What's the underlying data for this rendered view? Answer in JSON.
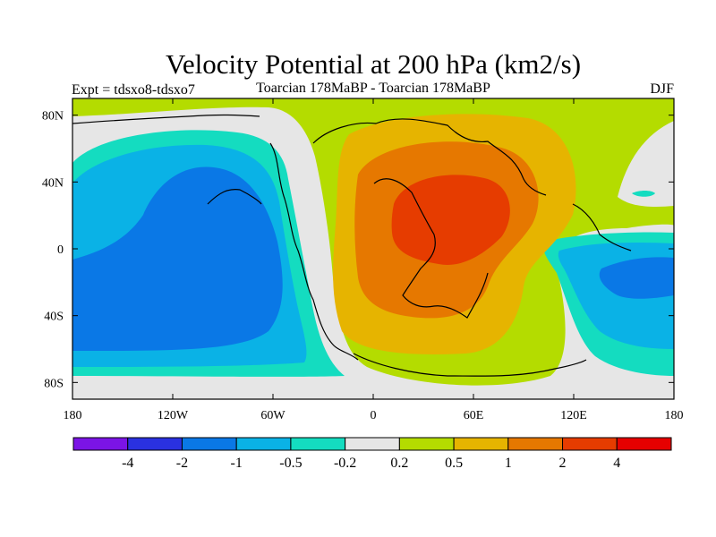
{
  "chart_data": {
    "type": "heatmap",
    "title": "Velocity Potential at 200 hPa (km2/s)",
    "left_subtitle": "Expt = tdsxo8-tdsxo7",
    "center_subtitle": "Toarcian 178MaBP - Toarcian 178MaBP",
    "right_subtitle": "DJF",
    "xlabel": "",
    "ylabel": "",
    "x_range": [
      -180,
      180
    ],
    "y_range": [
      -90,
      90
    ],
    "x_ticks": [
      {
        "value": -180,
        "label": "180"
      },
      {
        "value": -120,
        "label": "120W"
      },
      {
        "value": -60,
        "label": "60W"
      },
      {
        "value": 0,
        "label": "0"
      },
      {
        "value": 60,
        "label": "60E"
      },
      {
        "value": 120,
        "label": "120E"
      },
      {
        "value": 180,
        "label": "180"
      }
    ],
    "y_ticks": [
      {
        "value": 80,
        "label": "80N"
      },
      {
        "value": 40,
        "label": "40N"
      },
      {
        "value": 0,
        "label": "0"
      },
      {
        "value": -40,
        "label": "40S"
      },
      {
        "value": -80,
        "label": "80S"
      }
    ],
    "colorbar": {
      "colors": [
        "#7b14e6",
        "#2a31e0",
        "#0a78e6",
        "#0ab2e6",
        "#14dcc0",
        "#e6e6e6",
        "#b4dc00",
        "#e6b400",
        "#e67800",
        "#e63c00",
        "#e60000"
      ],
      "labels": [
        "-4",
        "-2",
        "-1",
        "-0.5",
        "-0.2",
        "0.2",
        "0.5",
        "1",
        "2",
        "4"
      ]
    },
    "field_regions": [
      {
        "level": "-1",
        "description": "Pacific minimum centered ~100W, 10N"
      },
      {
        "level": "-1",
        "description": "Indian/West Pacific minimum centered ~160E, 15S"
      },
      {
        "level": "2",
        "description": "maximum centered ~40E, 10N"
      },
      {
        "level": "4",
        "description": "peak near 40E, 20N"
      }
    ]
  }
}
